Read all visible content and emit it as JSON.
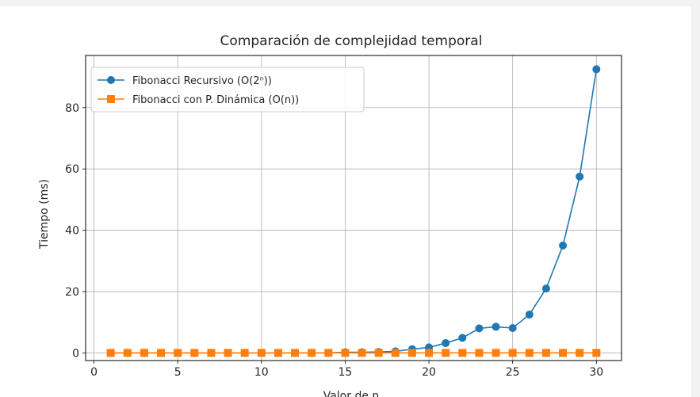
{
  "chart_data": {
    "type": "line",
    "title": "Comparación de complejidad temporal",
    "xlabel": "Valor de n",
    "ylabel": "Tiempo (ms)",
    "xlim": [
      -0.5,
      31.5
    ],
    "ylim": [
      -2.5,
      97
    ],
    "xticks": [
      0,
      5,
      10,
      15,
      20,
      25,
      30
    ],
    "yticks": [
      0,
      20,
      40,
      60,
      80
    ],
    "grid": true,
    "legend_position": "top-left",
    "x": [
      1,
      2,
      3,
      4,
      5,
      6,
      7,
      8,
      9,
      10,
      11,
      12,
      13,
      14,
      15,
      16,
      17,
      18,
      19,
      20,
      21,
      22,
      23,
      24,
      25,
      26,
      27,
      28,
      29,
      30
    ],
    "series": [
      {
        "name": "Fibonacci Recursivo (O(2ⁿ))",
        "color": "#1f77b4",
        "marker": "circle",
        "values": [
          0,
          0,
          0,
          0,
          0,
          0,
          0,
          0,
          0,
          0,
          0,
          0,
          0,
          0,
          0.2,
          0.2,
          0.3,
          0.5,
          1.2,
          1.8,
          3.2,
          4.9,
          8.0,
          8.5,
          8.1,
          12.5,
          21.0,
          35.0,
          57.5,
          92.5
        ]
      },
      {
        "name": "Fibonacci con P. Dinámica (O(n))",
        "color": "#ff7f0e",
        "marker": "square",
        "values": [
          0,
          0,
          0,
          0,
          0,
          0,
          0,
          0,
          0,
          0,
          0,
          0,
          0,
          0,
          0,
          0,
          0,
          0,
          0,
          0,
          0,
          0,
          0,
          0,
          0,
          0,
          0,
          0,
          0,
          0
        ]
      }
    ]
  }
}
